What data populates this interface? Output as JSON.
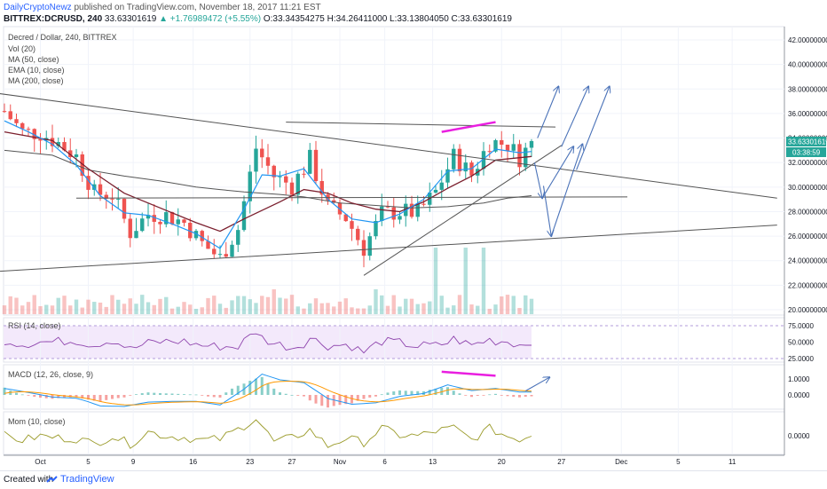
{
  "header": {
    "author": "DailyCryptoNewz",
    "published": "published on TradingView.com, November 18, 2017 11:21 EST",
    "symbol": "BITTREX:DCRUSD, 240",
    "last": "33.63301619",
    "change": "▲ +1.76989472 (+5.55%)",
    "ohlc": "O:33.34354275 H:34.26411000 L:33.13804050 C:33.63301619"
  },
  "legend": [
    "Decred / Dollar, 240, BITTREX",
    "Vol (20)",
    "MA (50, close)",
    "EMA (10, close)",
    "MA (200, close)"
  ],
  "price_badge": "33.63301619",
  "countdown_badge": "03:38:59",
  "panes": {
    "rsi_label": "RSI (14, close)",
    "macd_label": "MACD (12, 26, close, 9)",
    "mom_label": "Mom (10, close)"
  },
  "footer": {
    "created": "Created with",
    "brand": "TradingView"
  },
  "colors": {
    "up": "#26a69a",
    "down": "#ef5350",
    "ema": "#2196f3",
    "ma50": "#7b1f2e",
    "ma200": "#555555",
    "annot": "#4a72b8",
    "div": "#e91ee0",
    "rsi_band": "#f3e9fb",
    "macd": "#2196f3",
    "signal": "#ff9800",
    "mom": "#9a9a28"
  },
  "chart_data": {
    "type": "candlestick",
    "title": "Decred / Dollar, 240, BITTREX",
    "price_ticks": [
      "42.00000000",
      "40.00000000",
      "38.00000000",
      "36.00000000",
      "34.00000000",
      "32.00000000",
      "30.00000000",
      "28.00000000",
      "26.00000000",
      "24.00000000",
      "22.00000000",
      "20.00000000"
    ],
    "rsi_ticks": [
      "75.0000",
      "50.0000",
      "25.0000"
    ],
    "macd_ticks": [
      "1.0000",
      "0.0000"
    ],
    "mom_ticks": [
      "0.0000"
    ],
    "x_ticks": [
      "Oct",
      "5",
      "9",
      "16",
      "23",
      "27",
      "Nov",
      "6",
      "13",
      "20",
      "27",
      "Dec",
      "5",
      "11"
    ],
    "close_path": [
      [
        0,
        36.2
      ],
      [
        3,
        34.5
      ],
      [
        6,
        34.4
      ],
      [
        9,
        33.6
      ],
      [
        12,
        32.5
      ],
      [
        15,
        29.5
      ],
      [
        18,
        29.4
      ],
      [
        21,
        26.3
      ],
      [
        24,
        27.8
      ],
      [
        27,
        27.7
      ],
      [
        30,
        27.1
      ],
      [
        33,
        25.4
      ],
      [
        36,
        24.2
      ],
      [
        39,
        26.6
      ],
      [
        42,
        33.2
      ],
      [
        45,
        30.9
      ],
      [
        48,
        30.1
      ],
      [
        51,
        32.3
      ],
      [
        54,
        28.4
      ],
      [
        57,
        27.5
      ],
      [
        60,
        25.0
      ],
      [
        63,
        27.8
      ],
      [
        66,
        28.0
      ],
      [
        69,
        27.9
      ],
      [
        72,
        29.6
      ],
      [
        75,
        32.5
      ],
      [
        78,
        31.0
      ],
      [
        81,
        33.7
      ],
      [
        84,
        33.5
      ],
      [
        86,
        32.4
      ],
      [
        88,
        33.6
      ]
    ],
    "ema_path": [
      [
        0,
        35.4
      ],
      [
        4,
        34.5
      ],
      [
        8,
        33.5
      ],
      [
        12,
        31.8
      ],
      [
        16,
        29.3
      ],
      [
        20,
        27.9
      ],
      [
        24,
        27.7
      ],
      [
        28,
        27.0
      ],
      [
        32,
        26.2
      ],
      [
        36,
        25.0
      ],
      [
        40,
        28.2
      ],
      [
        43,
        31.0
      ],
      [
        46,
        30.9
      ],
      [
        50,
        31.5
      ],
      [
        54,
        29.0
      ],
      [
        58,
        27.4
      ],
      [
        62,
        27.1
      ],
      [
        66,
        27.8
      ],
      [
        70,
        29.0
      ],
      [
        74,
        31.3
      ],
      [
        78,
        31.5
      ],
      [
        82,
        33.1
      ],
      [
        86,
        32.8
      ],
      [
        88,
        32.9
      ]
    ],
    "ma50_path": [
      [
        0,
        34.5
      ],
      [
        8,
        33.8
      ],
      [
        14,
        31.5
      ],
      [
        20,
        29.5
      ],
      [
        26,
        28.3
      ],
      [
        32,
        27.1
      ],
      [
        36,
        26.4
      ],
      [
        40,
        27.4
      ],
      [
        46,
        28.8
      ],
      [
        50,
        29.8
      ],
      [
        54,
        29.5
      ],
      [
        58,
        28.7
      ],
      [
        62,
        28.2
      ],
      [
        66,
        28.0
      ],
      [
        70,
        28.8
      ],
      [
        74,
        29.9
      ],
      [
        78,
        30.9
      ],
      [
        82,
        32.2
      ],
      [
        86,
        32.4
      ],
      [
        88,
        32.5
      ]
    ],
    "ma200_path": [
      [
        0,
        33.0
      ],
      [
        8,
        32.6
      ],
      [
        14,
        31.4
      ],
      [
        20,
        30.9
      ],
      [
        26,
        30.5
      ],
      [
        32,
        30.0
      ],
      [
        36,
        29.8
      ],
      [
        40,
        29.6
      ],
      [
        46,
        29.4
      ],
      [
        50,
        29.2
      ],
      [
        56,
        28.7
      ],
      [
        62,
        28.5
      ],
      [
        68,
        28.3
      ],
      [
        74,
        28.4
      ],
      [
        80,
        28.7
      ],
      [
        84,
        29.1
      ],
      [
        88,
        29.3
      ]
    ],
    "annotations": {
      "trendlines": [
        [
          [
            -2,
            37.7
          ],
          [
            129,
            29.1
          ]
        ],
        [
          [
            -2,
            23.1
          ],
          [
            129,
            26.9
          ]
        ],
        [
          [
            47,
            35.3
          ],
          [
            92,
            34.9
          ]
        ],
        [
          [
            12,
            29.1
          ],
          [
            104,
            29.2
          ]
        ],
        [
          [
            60,
            22.8
          ],
          [
            93,
            33.4
          ]
        ]
      ],
      "divergence_price": [
        [
          73,
          34.5
        ],
        [
          82,
          35.3
        ]
      ],
      "divergence_macd": [
        [
          73,
          1.45
        ],
        [
          82,
          1.2
        ]
      ],
      "arrows_price": [
        [
          [
            89,
            34.0
          ],
          [
            92.5,
            38.2
          ]
        ],
        [
          [
            93,
            33.3
          ],
          [
            97.5,
            38.2
          ]
        ],
        [
          [
            95.5,
            31.4
          ],
          [
            101,
            38.2
          ]
        ],
        [
          [
            88.5,
            32.0
          ],
          [
            89.8,
            29.1
          ]
        ],
        [
          [
            89.8,
            29.1
          ],
          [
            95,
            33.3
          ]
        ],
        [
          [
            90,
            30.1
          ],
          [
            91.3,
            26.0
          ]
        ],
        [
          [
            91.3,
            26.0
          ],
          [
            96.5,
            33.5
          ]
        ]
      ],
      "arrow_macd": [
        [
          87,
          0.25
        ],
        [
          91,
          1.1
        ]
      ]
    }
  }
}
